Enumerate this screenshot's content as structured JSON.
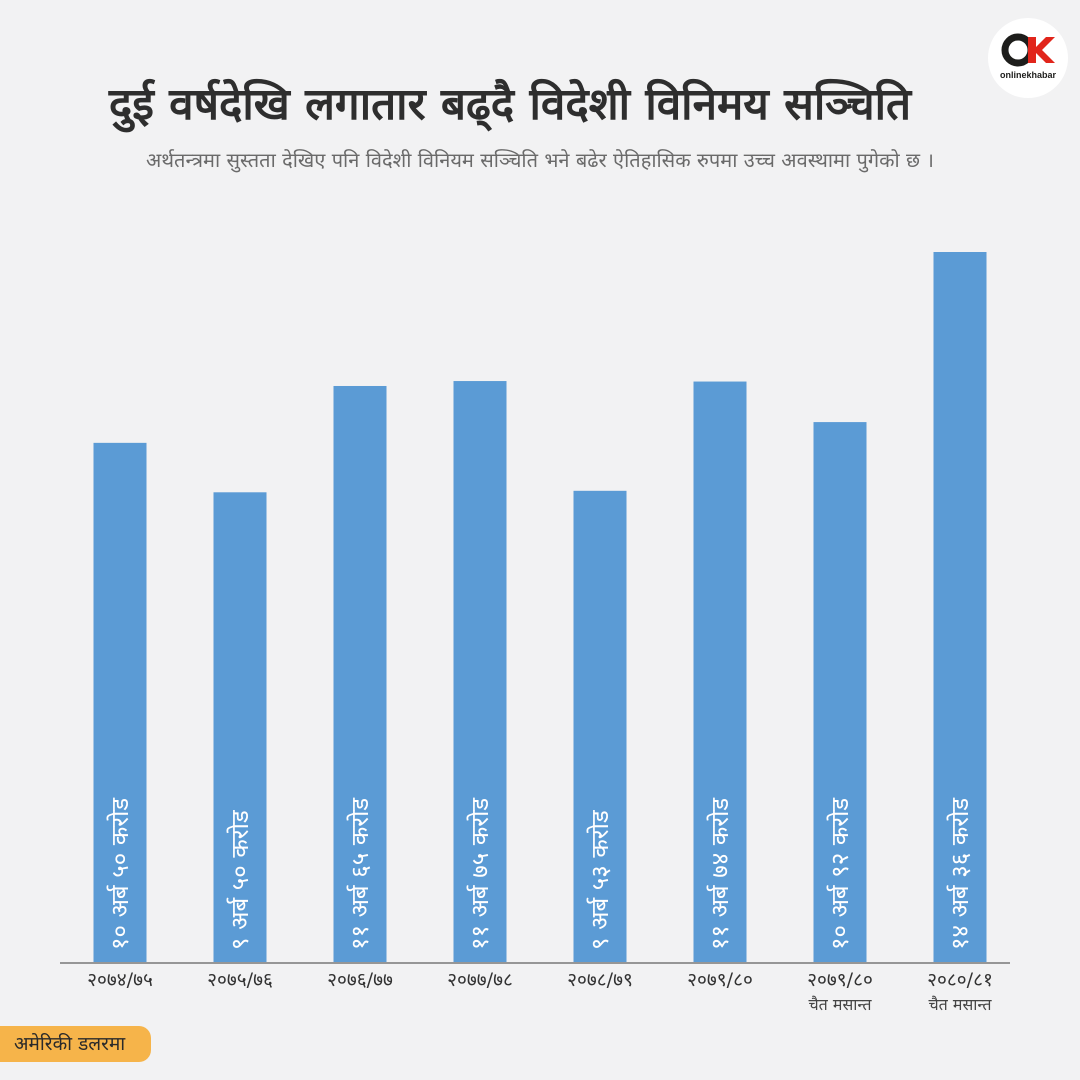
{
  "header": {
    "title": "दुई वर्षदेखि लगातार बढ्दै विदेशी विनिमय सञ्चिति",
    "subtitle": "अर्थतन्त्रमा सुस्तता देखिए पनि विदेशी विनियम सञ्चिति भने बढेर ऐतिहासिक रुपमा उच्च अवस्थामा पुगेको छ ।"
  },
  "logo": {
    "text": "onlinekhabar",
    "colors": {
      "dark": "#1d1d1b",
      "red": "#e1251b"
    }
  },
  "unit_label": "अमेरिकी डलरमा",
  "colors": {
    "bar": "#5b9bd5",
    "background": "#f2f2f3",
    "badge": "#f6b44a",
    "axis": "#777777"
  },
  "chart_data": {
    "type": "bar",
    "title": "दुई वर्षदेखि लगातार बढ्दै विदेशी विनिमय सञ्चिति",
    "ylabel": "",
    "xlabel": "",
    "unit": "अमेरिकी डलरमा",
    "ylim": [
      0,
      16
    ],
    "grid": false,
    "categories": [
      "२०७४/७५",
      "२०७५/७६",
      "२०७६/७७",
      "२०७७/७८",
      "२०७८/७९",
      "२०७९/८०",
      "२०७९/८० चैत मसान्त",
      "२०८०/८१ चैत मसान्त"
    ],
    "category_lines": [
      [
        "२०७४/७५"
      ],
      [
        "२०७५/७६"
      ],
      [
        "२०७६/७७"
      ],
      [
        "२०७७/७८"
      ],
      [
        "२०७८/७९"
      ],
      [
        "२०७९/८०"
      ],
      [
        "२०७९/८०",
        "चैत मसान्त"
      ],
      [
        "२०८०/८१",
        "चैत मसान्त"
      ]
    ],
    "values": [
      10.5,
      9.5,
      11.65,
      11.75,
      9.53,
      11.74,
      10.92,
      14.36
    ],
    "data_labels": [
      "१० अर्ब ५० करोड",
      "९ अर्ब ५० करोड",
      "११ अर्ब ६५ करोड",
      "११ अर्ब ७५ करोड",
      "९ अर्ब ५३ करोड",
      "११ अर्ब ७४ करोड",
      "१० अर्ब ९२ करोड",
      "१४ अर्ब ३६ करोड"
    ]
  }
}
